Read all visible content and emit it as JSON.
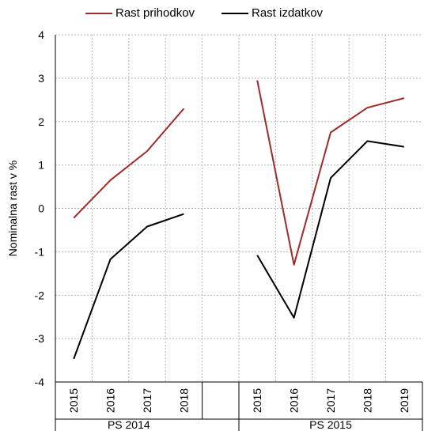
{
  "chart_data": {
    "type": "line",
    "ylabel": "Nominalna rast v %",
    "ylim": [
      -4,
      4
    ],
    "yticks": [
      -4,
      -3,
      -2,
      -1,
      0,
      1,
      2,
      3,
      4
    ],
    "grid": true,
    "legend_position": "top",
    "groups": [
      {
        "name": "PS 2014",
        "categories": [
          "2015",
          "2016",
          "2017",
          "2018"
        ]
      },
      {
        "name": "PS 2015",
        "categories": [
          "2015",
          "2016",
          "2017",
          "2018",
          "2019"
        ]
      }
    ],
    "series": [
      {
        "name": "Rast prihodkov",
        "color": "#a02a2a",
        "values": {
          "PS 2014": [
            -0.22,
            0.65,
            1.32,
            2.3
          ],
          "PS 2015": [
            2.95,
            -1.3,
            1.75,
            2.32,
            2.54
          ]
        }
      },
      {
        "name": "Rast izdatkov",
        "color": "#000000",
        "values": {
          "PS 2014": [
            -3.47,
            -1.17,
            -0.42,
            -0.13
          ],
          "PS 2015": [
            -1.08,
            -2.52,
            0.7,
            1.55,
            1.42
          ]
        }
      }
    ]
  }
}
